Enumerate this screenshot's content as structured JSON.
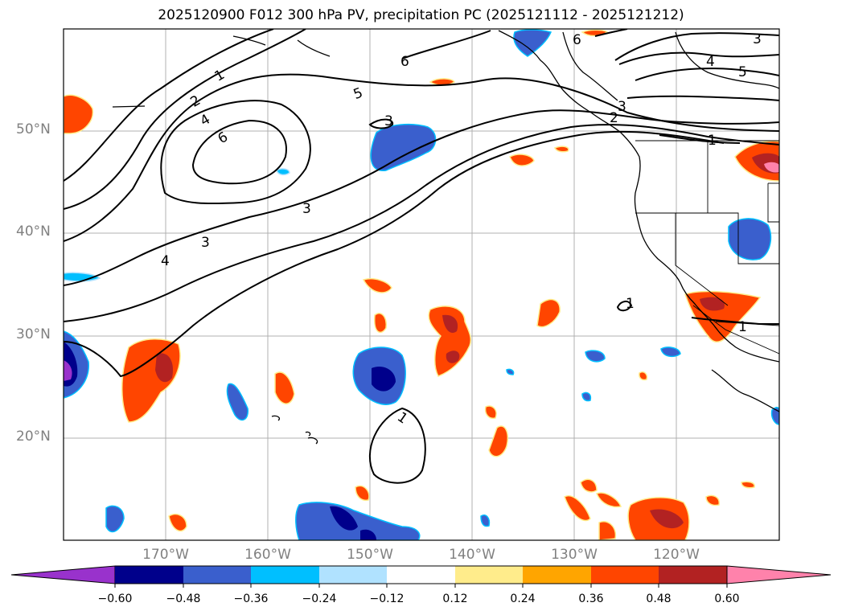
{
  "title": "2025120900 F012 300 hPa PV, precipitation PC (2025121112 - 2025121212)",
  "map": {
    "lat_labels": [
      "50°N",
      "40°N",
      "30°N",
      "20°N"
    ],
    "lon_labels": [
      "170°W",
      "160°W",
      "150°W",
      "140°W",
      "130°W",
      "120°W"
    ],
    "contour_labels": [
      "1",
      "2",
      "4",
      "6",
      "5",
      "3",
      "6",
      "6",
      "3",
      "4",
      "5",
      "3",
      "2",
      "1",
      "3",
      "3",
      "4",
      "1",
      "1",
      "1"
    ]
  },
  "colorbar": {
    "tick_labels": [
      "−0.60",
      "−0.48",
      "−0.36",
      "−0.24",
      "−0.12",
      "0.12",
      "0.24",
      "0.36",
      "0.48",
      "0.60"
    ],
    "colors": [
      "#9932CC",
      "#00008B",
      "#3A5FCD",
      "#00BFFF",
      "#B0E2FF",
      "#FFFFFF",
      "#FFEC8B",
      "#FFA500",
      "#FF4500",
      "#B22222",
      "#FF82AB"
    ]
  }
}
